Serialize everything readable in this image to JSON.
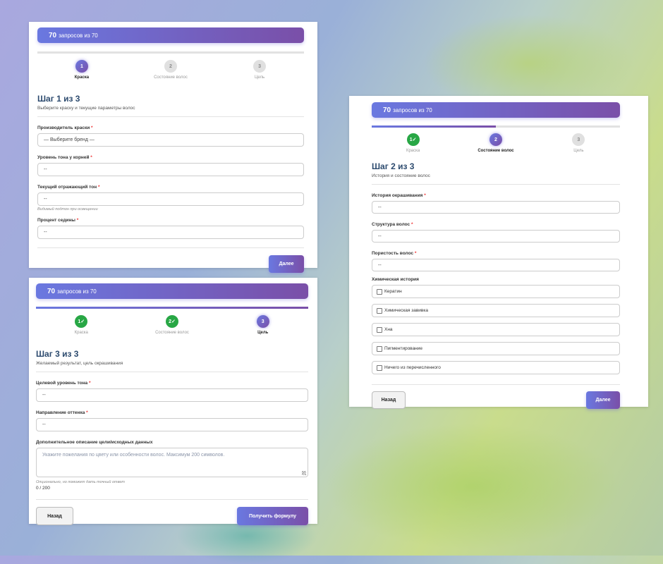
{
  "quota": {
    "count": "70",
    "text": "запросов из 70"
  },
  "steps": [
    {
      "num": "1",
      "done": "1✓",
      "label": "Краска"
    },
    {
      "num": "2",
      "done": "2✓",
      "label": "Состояние волос"
    },
    {
      "num": "3",
      "label": "Цель"
    }
  ],
  "colors": {
    "accent_start": "#6a78e0",
    "accent_end": "#7a4fa8",
    "done": "#28a745",
    "title": "#2c4a6e"
  },
  "step1": {
    "title": "Шаг 1 из 3",
    "subtitle": "Выберите краску и текущие параметры волос",
    "fields": [
      {
        "label": "Производитель краски",
        "value": "— Выберите бренд —"
      },
      {
        "label": "Уровень тона у корней",
        "value": "--"
      },
      {
        "label": "Текущий отражающий тон",
        "value": "--",
        "hint": "Видимый подтон при освещении"
      },
      {
        "label": "Процент седины",
        "value": "--"
      }
    ],
    "next": "Далее"
  },
  "step2": {
    "title": "Шаг 2 из 3",
    "subtitle": "История и состояние волос",
    "fields": [
      {
        "label": "История окрашивания",
        "value": "--"
      },
      {
        "label": "Структура волос",
        "value": "--"
      },
      {
        "label": "Пористость волос",
        "value": "--"
      }
    ],
    "chem_label": "Химическая история",
    "chem": [
      {
        "label": "Кератин",
        "checked": false
      },
      {
        "label": "Химическая завивка",
        "checked": false
      },
      {
        "label": "Хна",
        "checked": false
      },
      {
        "label": "Пигментирование",
        "checked": false
      },
      {
        "label": "Ничего из перечисленного",
        "checked": false
      }
    ],
    "back": "Назад",
    "next": "Далее"
  },
  "step3": {
    "title": "Шаг 3 из 3",
    "subtitle": "Желаемый результат, цель окрашивания",
    "fields": [
      {
        "label": "Целевой уровень тона",
        "value": "--"
      },
      {
        "label": "Направление оттенка",
        "value": "--"
      }
    ],
    "desc_label": "Дополнительное описание цели/исходных данных",
    "desc_placeholder": "Укажите пожелания по цвету или особенности волос. Максимум 200 символов.",
    "desc_hint": "Опционально, но поможет дать точный ответ",
    "counter": "0 / 200",
    "back": "Назад",
    "submit": "Получить формулу"
  },
  "required_mark": "*"
}
